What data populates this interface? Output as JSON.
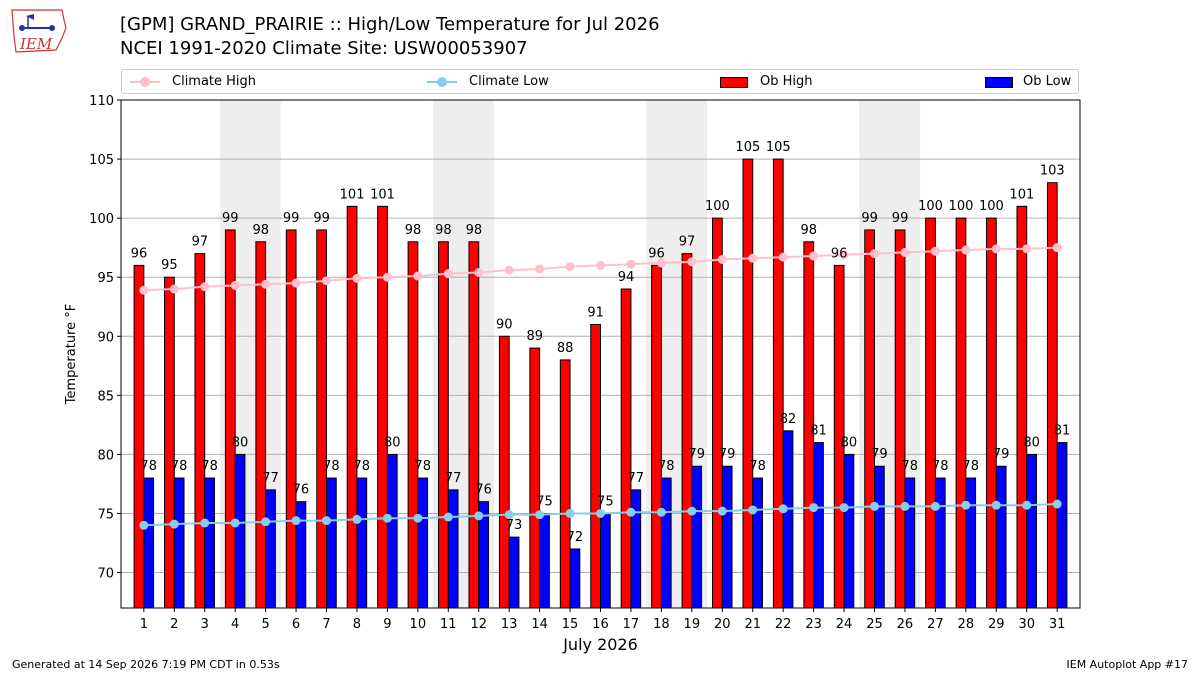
{
  "header": {
    "title_line1": "[GPM] GRAND_PRAIRIE :: High/Low Temperature for Jul 2026",
    "title_line2": "NCEI 1991-2020 Climate Site: USW00053907",
    "logo_text": "IEM"
  },
  "footer": {
    "generated": "Generated at 14 Sep 2026 7:19 PM CDT in 0.53s",
    "app": "IEM Autoplot App #17"
  },
  "colors": {
    "climate_high": "#ffc0cb",
    "climate_low": "#87ceeb",
    "ob_high": "#ff0000",
    "ob_low": "#0000ff",
    "weekend_shade": "#eeeeee",
    "grid": "#b0b0b0"
  },
  "chart_data": {
    "type": "bar",
    "xlabel": "July 2026",
    "ylabel": "Temperature °F",
    "ylim": [
      67,
      110
    ],
    "yticks": [
      70,
      75,
      80,
      85,
      90,
      95,
      100,
      105,
      110
    ],
    "grid": true,
    "legend_placement": "top",
    "categories": [
      "1",
      "2",
      "3",
      "4",
      "5",
      "6",
      "7",
      "8",
      "9",
      "10",
      "11",
      "12",
      "13",
      "14",
      "15",
      "16",
      "17",
      "18",
      "19",
      "20",
      "21",
      "22",
      "23",
      "24",
      "25",
      "26",
      "27",
      "28",
      "29",
      "30",
      "31"
    ],
    "shaded_days": [
      4,
      5,
      11,
      12,
      18,
      19,
      25,
      26
    ],
    "series": [
      {
        "name": "Ob High",
        "kind": "bar",
        "values": [
          96,
          95,
          97,
          99,
          98,
          99,
          99,
          101,
          101,
          98,
          98,
          98,
          90,
          89,
          88,
          91,
          94,
          96,
          97,
          100,
          105,
          105,
          98,
          96,
          99,
          99,
          100,
          100,
          100,
          101,
          103
        ]
      },
      {
        "name": "Ob Low",
        "kind": "bar",
        "values": [
          78,
          78,
          78,
          80,
          77,
          76,
          78,
          78,
          80,
          78,
          77,
          76,
          73,
          75,
          72,
          75,
          77,
          78,
          79,
          79,
          78,
          82,
          81,
          80,
          79,
          78,
          78,
          78,
          79,
          80,
          81
        ]
      },
      {
        "name": "Climate High",
        "kind": "line",
        "values": [
          93.9,
          94.0,
          94.2,
          94.3,
          94.4,
          94.5,
          94.7,
          94.9,
          95.0,
          95.1,
          95.3,
          95.4,
          95.6,
          95.7,
          95.9,
          96.0,
          96.1,
          96.2,
          96.3,
          96.5,
          96.6,
          96.7,
          96.8,
          96.9,
          97.0,
          97.1,
          97.2,
          97.3,
          97.4,
          97.4,
          97.5
        ]
      },
      {
        "name": "Climate Low",
        "kind": "line",
        "values": [
          74.0,
          74.1,
          74.2,
          74.2,
          74.3,
          74.4,
          74.4,
          74.5,
          74.6,
          74.6,
          74.7,
          74.8,
          74.9,
          74.9,
          75.0,
          75.0,
          75.1,
          75.1,
          75.2,
          75.2,
          75.3,
          75.4,
          75.5,
          75.5,
          75.6,
          75.6,
          75.6,
          75.7,
          75.7,
          75.7,
          75.8
        ]
      }
    ]
  }
}
